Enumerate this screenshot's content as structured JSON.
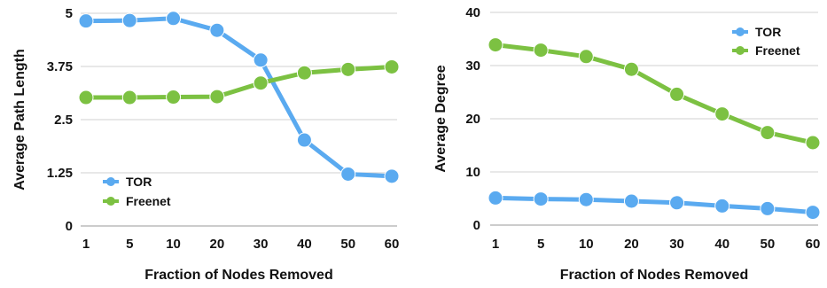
{
  "chart_data": [
    {
      "type": "line",
      "categories": [
        "1",
        "5",
        "10",
        "20",
        "30",
        "40",
        "50",
        "60"
      ],
      "xlabel": "Fraction of Nodes Removed",
      "ylabel": "Average Path Length",
      "ylim": [
        0,
        5
      ],
      "yticks": [
        "0",
        "1.25",
        "2.5",
        "3.75",
        "5"
      ],
      "grid": "horizontal",
      "legend": "bottom-left",
      "series": [
        {
          "name": "TOR",
          "color": "#5aaaf0",
          "values": [
            4.82,
            4.83,
            4.88,
            4.6,
            3.9,
            2.02,
            1.22,
            1.17
          ]
        },
        {
          "name": "Freenet",
          "color": "#7cc142",
          "values": [
            3.02,
            3.02,
            3.03,
            3.04,
            3.36,
            3.6,
            3.68,
            3.74
          ]
        }
      ]
    },
    {
      "type": "line",
      "categories": [
        "1",
        "5",
        "10",
        "20",
        "30",
        "40",
        "50",
        "60"
      ],
      "xlabel": "Fraction of Nodes Removed",
      "ylabel": "Average Degree",
      "ylim": [
        0,
        40
      ],
      "yticks": [
        "0",
        "10",
        "20",
        "30",
        "40"
      ],
      "grid": "horizontal",
      "legend": "top-right",
      "series": [
        {
          "name": "TOR",
          "color": "#5aaaf0",
          "values": [
            5.1,
            4.9,
            4.8,
            4.5,
            4.2,
            3.6,
            3.1,
            2.4
          ]
        },
        {
          "name": "Freenet",
          "color": "#7cc142",
          "values": [
            33.9,
            32.9,
            31.7,
            29.3,
            24.6,
            20.9,
            17.4,
            15.5
          ]
        }
      ]
    }
  ]
}
